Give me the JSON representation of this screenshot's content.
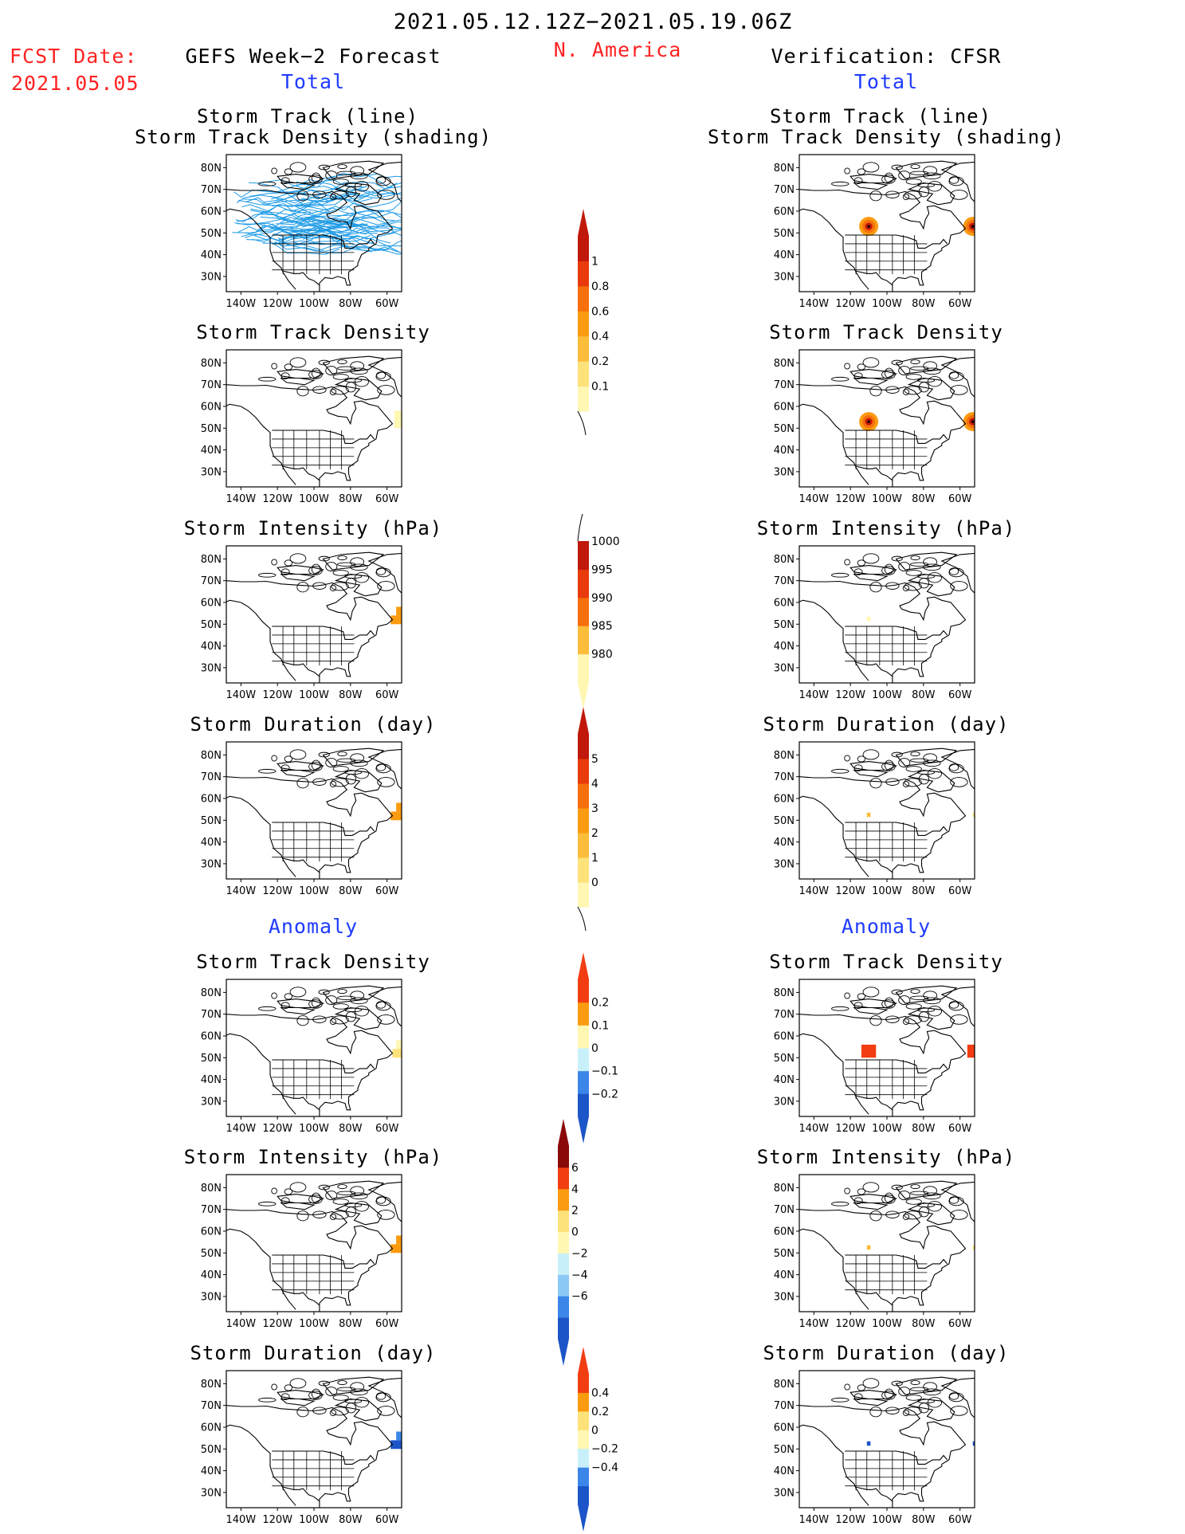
{
  "header": {
    "period": "2021.05.12.12Z−2021.05.19.06Z",
    "region": "N. America",
    "fcst_label": "FCST Date:",
    "fcst_date": "2021.05.05",
    "left_title": "GEFS Week−2 Forecast",
    "right_title": "Verification: CFSR",
    "total_label": "Total",
    "anomaly_label": "Anomaly"
  },
  "axis": {
    "lat_ticks": [
      "80N",
      "70N",
      "60N",
      "50N",
      "40N",
      "30N"
    ],
    "lon_ticks": [
      "140W",
      "120W",
      "100W",
      "80W",
      "60W"
    ]
  },
  "panel_titles": {
    "track_line": "Storm Track (line)",
    "track_shading": "Storm Track Density (shading)",
    "density": "Storm Track Density",
    "intensity": "Storm Intensity (hPa)",
    "duration": "Storm Duration (day)"
  },
  "colorbars": {
    "density": [
      "1",
      "0.8",
      "0.6",
      "0.4",
      "0.2",
      "0.1"
    ],
    "intensity": [
      "1000",
      "995",
      "990",
      "985",
      "980"
    ],
    "duration": [
      "5",
      "4",
      "3",
      "2",
      "1",
      "0"
    ],
    "density_anom": [
      "0.2",
      "0.1",
      "0",
      "−0.1",
      "−0.2"
    ],
    "intensity_anom": [
      "6",
      "4",
      "2",
      "0",
      "−2",
      "−4",
      "−6"
    ],
    "duration_anom": [
      "0.4",
      "0.2",
      "0",
      "−0.2",
      "−0.4"
    ]
  },
  "colors": {
    "warm": [
      "#fff7b2",
      "#fde27a",
      "#fbbd3a",
      "#fb9b10",
      "#f76e0c",
      "#e83a0a",
      "#c0180a",
      "#8a0a0a"
    ],
    "anom": [
      "#1c55c7",
      "#3b86e8",
      "#8cc8f5",
      "#c8f0fa",
      "#fff7b2",
      "#fde27a",
      "#fb9b10",
      "#f23d12"
    ],
    "track": "#1e9be6"
  }
}
